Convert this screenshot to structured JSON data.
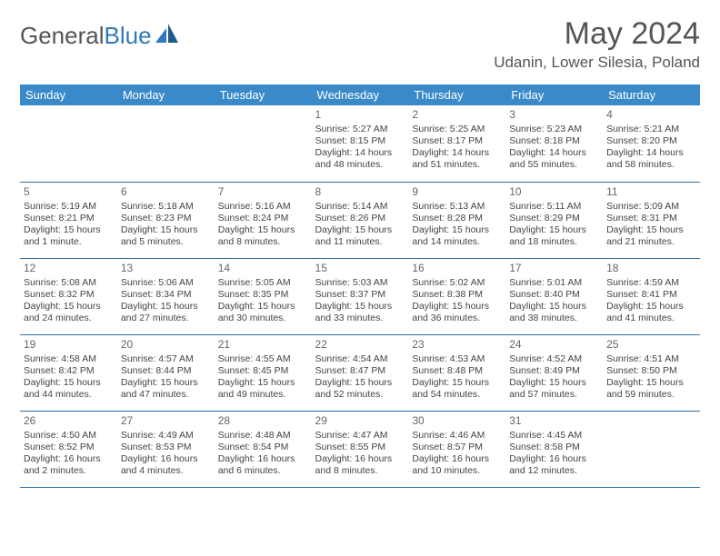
{
  "brand": {
    "part1": "General",
    "part2": "Blue"
  },
  "title": "May 2024",
  "location": "Udanin, Lower Silesia, Poland",
  "colors": {
    "header_bg": "#3a8ac9",
    "border": "#2f6fa0",
    "brand_blue": "#2f7ab8"
  },
  "weekdays": [
    "Sunday",
    "Monday",
    "Tuesday",
    "Wednesday",
    "Thursday",
    "Friday",
    "Saturday"
  ],
  "weeks": [
    [
      {
        "n": "",
        "t": ""
      },
      {
        "n": "",
        "t": ""
      },
      {
        "n": "",
        "t": ""
      },
      {
        "n": "1",
        "t": "Sunrise: 5:27 AM\nSunset: 8:15 PM\nDaylight: 14 hours\nand 48 minutes."
      },
      {
        "n": "2",
        "t": "Sunrise: 5:25 AM\nSunset: 8:17 PM\nDaylight: 14 hours\nand 51 minutes."
      },
      {
        "n": "3",
        "t": "Sunrise: 5:23 AM\nSunset: 8:18 PM\nDaylight: 14 hours\nand 55 minutes."
      },
      {
        "n": "4",
        "t": "Sunrise: 5:21 AM\nSunset: 8:20 PM\nDaylight: 14 hours\nand 58 minutes."
      }
    ],
    [
      {
        "n": "5",
        "t": "Sunrise: 5:19 AM\nSunset: 8:21 PM\nDaylight: 15 hours\nand 1 minute."
      },
      {
        "n": "6",
        "t": "Sunrise: 5:18 AM\nSunset: 8:23 PM\nDaylight: 15 hours\nand 5 minutes."
      },
      {
        "n": "7",
        "t": "Sunrise: 5:16 AM\nSunset: 8:24 PM\nDaylight: 15 hours\nand 8 minutes."
      },
      {
        "n": "8",
        "t": "Sunrise: 5:14 AM\nSunset: 8:26 PM\nDaylight: 15 hours\nand 11 minutes."
      },
      {
        "n": "9",
        "t": "Sunrise: 5:13 AM\nSunset: 8:28 PM\nDaylight: 15 hours\nand 14 minutes."
      },
      {
        "n": "10",
        "t": "Sunrise: 5:11 AM\nSunset: 8:29 PM\nDaylight: 15 hours\nand 18 minutes."
      },
      {
        "n": "11",
        "t": "Sunrise: 5:09 AM\nSunset: 8:31 PM\nDaylight: 15 hours\nand 21 minutes."
      }
    ],
    [
      {
        "n": "12",
        "t": "Sunrise: 5:08 AM\nSunset: 8:32 PM\nDaylight: 15 hours\nand 24 minutes."
      },
      {
        "n": "13",
        "t": "Sunrise: 5:06 AM\nSunset: 8:34 PM\nDaylight: 15 hours\nand 27 minutes."
      },
      {
        "n": "14",
        "t": "Sunrise: 5:05 AM\nSunset: 8:35 PM\nDaylight: 15 hours\nand 30 minutes."
      },
      {
        "n": "15",
        "t": "Sunrise: 5:03 AM\nSunset: 8:37 PM\nDaylight: 15 hours\nand 33 minutes."
      },
      {
        "n": "16",
        "t": "Sunrise: 5:02 AM\nSunset: 8:38 PM\nDaylight: 15 hours\nand 36 minutes."
      },
      {
        "n": "17",
        "t": "Sunrise: 5:01 AM\nSunset: 8:40 PM\nDaylight: 15 hours\nand 38 minutes."
      },
      {
        "n": "18",
        "t": "Sunrise: 4:59 AM\nSunset: 8:41 PM\nDaylight: 15 hours\nand 41 minutes."
      }
    ],
    [
      {
        "n": "19",
        "t": "Sunrise: 4:58 AM\nSunset: 8:42 PM\nDaylight: 15 hours\nand 44 minutes."
      },
      {
        "n": "20",
        "t": "Sunrise: 4:57 AM\nSunset: 8:44 PM\nDaylight: 15 hours\nand 47 minutes."
      },
      {
        "n": "21",
        "t": "Sunrise: 4:55 AM\nSunset: 8:45 PM\nDaylight: 15 hours\nand 49 minutes."
      },
      {
        "n": "22",
        "t": "Sunrise: 4:54 AM\nSunset: 8:47 PM\nDaylight: 15 hours\nand 52 minutes."
      },
      {
        "n": "23",
        "t": "Sunrise: 4:53 AM\nSunset: 8:48 PM\nDaylight: 15 hours\nand 54 minutes."
      },
      {
        "n": "24",
        "t": "Sunrise: 4:52 AM\nSunset: 8:49 PM\nDaylight: 15 hours\nand 57 minutes."
      },
      {
        "n": "25",
        "t": "Sunrise: 4:51 AM\nSunset: 8:50 PM\nDaylight: 15 hours\nand 59 minutes."
      }
    ],
    [
      {
        "n": "26",
        "t": "Sunrise: 4:50 AM\nSunset: 8:52 PM\nDaylight: 16 hours\nand 2 minutes."
      },
      {
        "n": "27",
        "t": "Sunrise: 4:49 AM\nSunset: 8:53 PM\nDaylight: 16 hours\nand 4 minutes."
      },
      {
        "n": "28",
        "t": "Sunrise: 4:48 AM\nSunset: 8:54 PM\nDaylight: 16 hours\nand 6 minutes."
      },
      {
        "n": "29",
        "t": "Sunrise: 4:47 AM\nSunset: 8:55 PM\nDaylight: 16 hours\nand 8 minutes."
      },
      {
        "n": "30",
        "t": "Sunrise: 4:46 AM\nSunset: 8:57 PM\nDaylight: 16 hours\nand 10 minutes."
      },
      {
        "n": "31",
        "t": "Sunrise: 4:45 AM\nSunset: 8:58 PM\nDaylight: 16 hours\nand 12 minutes."
      },
      {
        "n": "",
        "t": ""
      }
    ]
  ]
}
